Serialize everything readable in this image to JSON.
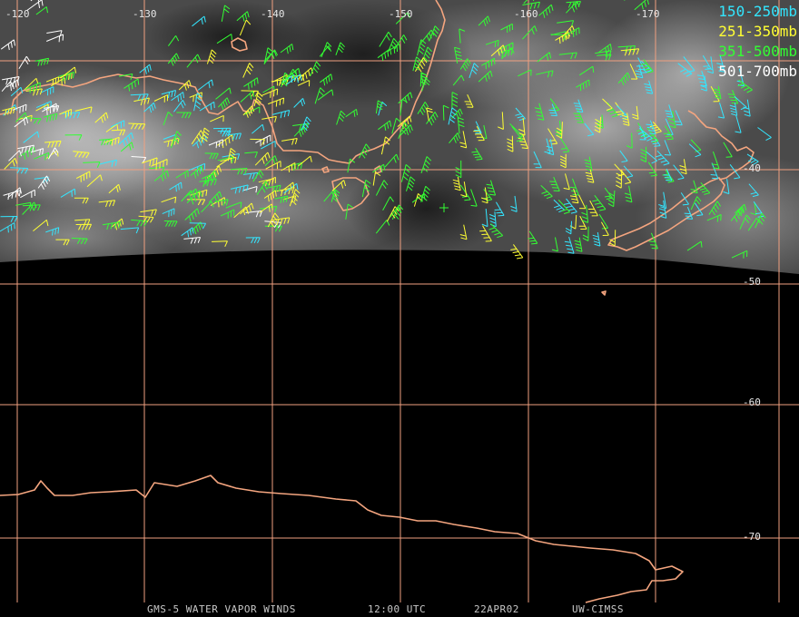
{
  "legend": [
    {
      "label": "150-250mb",
      "color": "#33e6ff"
    },
    {
      "label": "251-350mb",
      "color": "#ffff33"
    },
    {
      "label": "351-500mb",
      "color": "#33ff33"
    },
    {
      "label": "501-700mb",
      "color": "#ffffff"
    }
  ],
  "longitude_labels": [
    "-120",
    "-130",
    "-140",
    "-150",
    "-160",
    "-170"
  ],
  "latitude_labels": [
    "-40",
    "-50",
    "-60",
    "-70"
  ],
  "footer": {
    "product": "GMS-5 WATER VAPOR WINDS",
    "time": "12:00 UTC",
    "date": "22APR02",
    "source": "UW-CIMSS"
  },
  "colors": {
    "grid": "#f0a080",
    "coast": "#f4a57f",
    "background": "#000000"
  }
}
